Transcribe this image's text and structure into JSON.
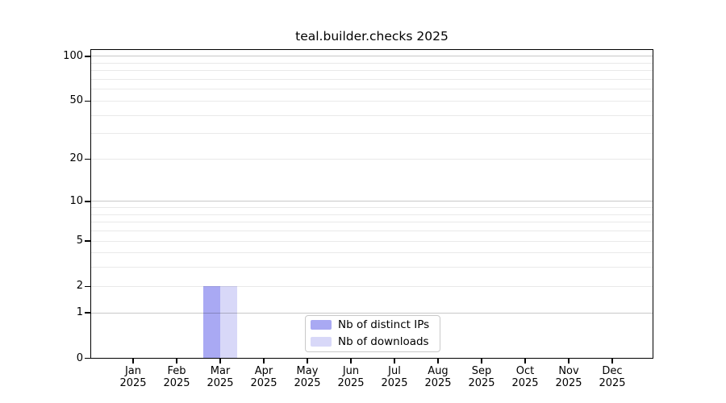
{
  "figure": {
    "background": "#ffffff",
    "title": "teal.builder.checks 2025"
  },
  "chart_data": {
    "type": "bar",
    "title": "teal.builder.checks 2025",
    "xlabel": "",
    "ylabel": "",
    "x_categories": [
      "Jan",
      "Feb",
      "Mar",
      "Apr",
      "May",
      "Jun",
      "Jul",
      "Aug",
      "Sep",
      "Oct",
      "Nov",
      "Dec"
    ],
    "x_year_label": "2025",
    "series": [
      {
        "name": "Nb of distinct IPs",
        "color": "#a9a9f3",
        "values": [
          0,
          0,
          2,
          0,
          0,
          0,
          0,
          0,
          0,
          0,
          0,
          0
        ]
      },
      {
        "name": "Nb of downloads",
        "color": "#d8d8f8",
        "values": [
          0,
          0,
          2,
          0,
          0,
          0,
          0,
          0,
          0,
          0,
          0,
          0
        ]
      }
    ],
    "y_scale": "log10(1+y)",
    "ylim": [
      0,
      112
    ],
    "y_tick_values": [
      0,
      1,
      2,
      5,
      10,
      20,
      50,
      100
    ],
    "y_major_grid_values": [
      1,
      10,
      100
    ],
    "y_minor_grid_values": [
      2,
      3,
      4,
      5,
      6,
      7,
      8,
      9,
      20,
      30,
      40,
      50,
      60,
      70,
      80,
      90
    ],
    "grid": true,
    "legend_position": "inside-bottom-center"
  },
  "colors": {
    "major_grid": "rgba(0,0,0,0.215)",
    "minor_grid": "rgba(0,0,0,0.085)",
    "spine": "#000000",
    "text": "#000000",
    "legend_border": "#c9c9c9"
  }
}
